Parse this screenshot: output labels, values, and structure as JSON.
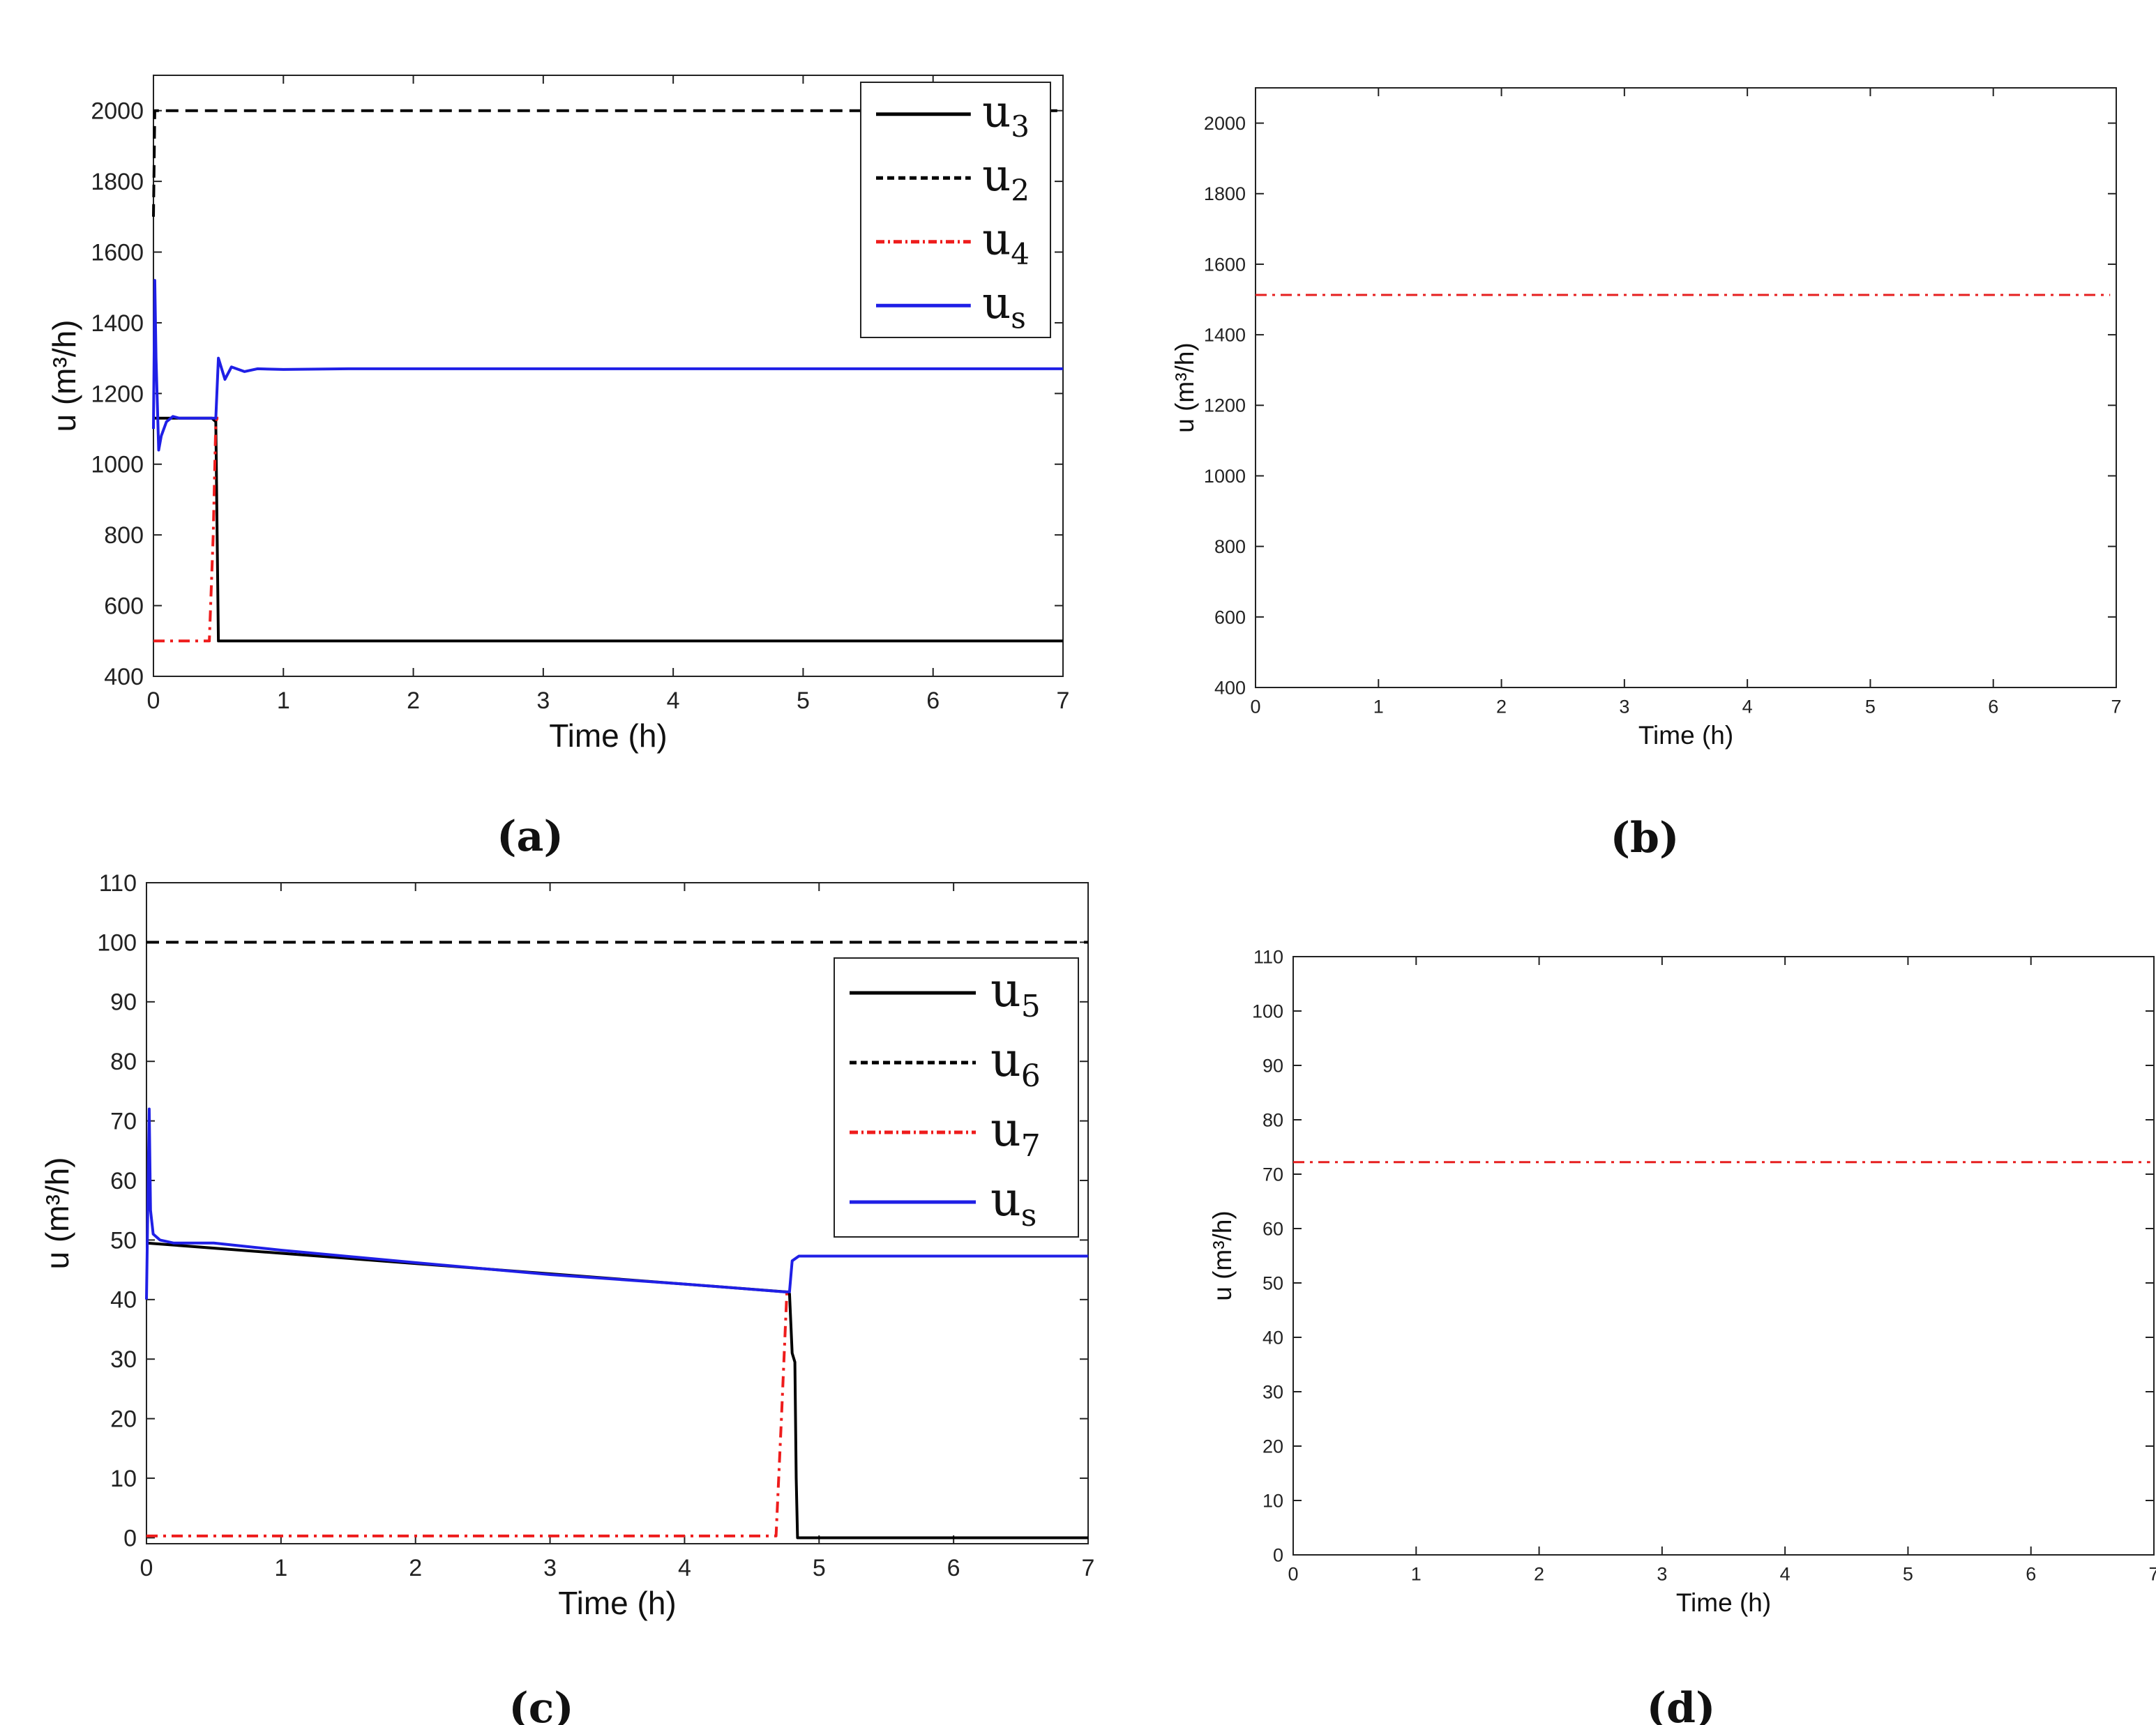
{
  "chart_data": [
    {
      "id": "a",
      "type": "line",
      "caption": "(a)",
      "xlabel": "Time (h)",
      "ylabel": "u (m³/h)",
      "xlim": [
        0,
        7
      ],
      "ylim": [
        400,
        2100
      ],
      "xticks": [
        0,
        1,
        2,
        3,
        4,
        5,
        6,
        7
      ],
      "yticks": [
        400,
        600,
        800,
        1000,
        1200,
        1400,
        1600,
        1800,
        2000
      ],
      "legend_position": "top-right",
      "legend": [
        {
          "base": "u",
          "sub": "3"
        },
        {
          "base": "u",
          "sub": "2"
        },
        {
          "base": "u",
          "sub": "4"
        },
        {
          "base": "u",
          "sub": "s"
        }
      ],
      "series": [
        {
          "name": "u3",
          "color": "#000000",
          "style": "solid",
          "x": [
            0,
            0.45,
            0.48,
            0.49,
            0.5,
            7
          ],
          "y": [
            1130,
            1130,
            1120,
            800,
            500,
            500
          ]
        },
        {
          "name": "u2",
          "color": "#000000",
          "style": "dashed",
          "x": [
            0,
            0.01,
            7
          ],
          "y": [
            1700,
            2000,
            2000
          ]
        },
        {
          "name": "u4",
          "color": "#ee1c1c",
          "style": "dashdot",
          "x": [
            0,
            0.43,
            0.46,
            0.48,
            0.49,
            0.5
          ],
          "y": [
            500,
            500,
            800,
            1120,
            1130,
            1130
          ]
        },
        {
          "name": "us",
          "color": "#1f1fe6",
          "style": "solid",
          "x": [
            0,
            0.01,
            0.02,
            0.04,
            0.06,
            0.1,
            0.15,
            0.2,
            0.3,
            0.45,
            0.48,
            0.5,
            0.55,
            0.6,
            0.7,
            0.8,
            1.0,
            1.5,
            2.0,
            7.0
          ],
          "y": [
            1100,
            1520,
            1300,
            1040,
            1080,
            1120,
            1135,
            1130,
            1130,
            1130,
            1130,
            1300,
            1240,
            1275,
            1262,
            1270,
            1268,
            1270,
            1270,
            1270
          ]
        }
      ]
    },
    {
      "id": "b",
      "type": "line",
      "caption": "(b)",
      "xlabel": "Time (h)",
      "ylabel": "u (m³/h)",
      "xlim": [
        0,
        7
      ],
      "ylim": [
        400,
        2100
      ],
      "xticks": [
        0,
        1,
        2,
        3,
        4,
        5,
        6,
        7
      ],
      "yticks": [
        400,
        600,
        800,
        1000,
        1200,
        1400,
        1600,
        1800,
        2000
      ],
      "series": [
        {
          "name": "u",
          "color": "#e61f1f",
          "style": "dashdot",
          "x": [
            0,
            6.95
          ],
          "y": [
            1513,
            1513
          ]
        }
      ]
    },
    {
      "id": "c",
      "type": "line",
      "caption": "(c)",
      "xlabel": "Time (h)",
      "ylabel": "u (m³/h)",
      "xlim": [
        0,
        7
      ],
      "ylim": [
        -1,
        110
      ],
      "xticks": [
        0,
        1,
        2,
        3,
        4,
        5,
        6,
        7
      ],
      "yticks": [
        0,
        10,
        20,
        30,
        40,
        50,
        60,
        70,
        80,
        90,
        100,
        110
      ],
      "legend_position": "top-right",
      "legend": [
        {
          "base": "u",
          "sub": "5"
        },
        {
          "base": "u",
          "sub": "6"
        },
        {
          "base": "u",
          "sub": "7"
        },
        {
          "base": "u",
          "sub": "s"
        }
      ],
      "series": [
        {
          "name": "u5",
          "color": "#000000",
          "style": "solid",
          "x": [
            0,
            4.75,
            4.78,
            4.8,
            4.82,
            4.83,
            4.84,
            7
          ],
          "y": [
            49.5,
            41.3,
            41,
            31,
            29.5,
            10,
            0,
            0
          ]
        },
        {
          "name": "u6",
          "color": "#000000",
          "style": "dashed",
          "x": [
            0,
            7
          ],
          "y": [
            100,
            100
          ]
        },
        {
          "name": "u7",
          "color": "#ee1c1c",
          "style": "dashdot",
          "x": [
            0,
            4.68,
            4.72,
            4.76,
            4.78
          ],
          "y": [
            0.3,
            0.3,
            20,
            41,
            41
          ]
        },
        {
          "name": "us",
          "color": "#1f1fe6",
          "style": "solid",
          "x": [
            0,
            0.02,
            0.03,
            0.05,
            0.1,
            0.2,
            0.5,
            1.0,
            2.0,
            3.0,
            4.0,
            4.74,
            4.78,
            4.8,
            4.85,
            5.0,
            7.0
          ],
          "y": [
            40,
            72,
            55,
            51,
            50,
            49.5,
            49.5,
            48.3,
            46.2,
            44.2,
            42.6,
            41.3,
            41.3,
            46.5,
            47.3,
            47.3,
            47.3
          ]
        }
      ]
    },
    {
      "id": "d",
      "type": "line",
      "caption": "(d)",
      "xlabel": "Time (h)",
      "ylabel": "u (m³/h)",
      "xlim": [
        0,
        7
      ],
      "ylim": [
        0,
        110
      ],
      "xticks": [
        0,
        1,
        2,
        3,
        4,
        5,
        6,
        7
      ],
      "yticks": [
        0,
        10,
        20,
        30,
        40,
        50,
        60,
        70,
        80,
        90,
        100,
        110
      ],
      "series": [
        {
          "name": "u",
          "color": "#e61f1f",
          "style": "dashdot",
          "x": [
            0,
            6.97
          ],
          "y": [
            72.2,
            72.2
          ]
        }
      ]
    }
  ]
}
